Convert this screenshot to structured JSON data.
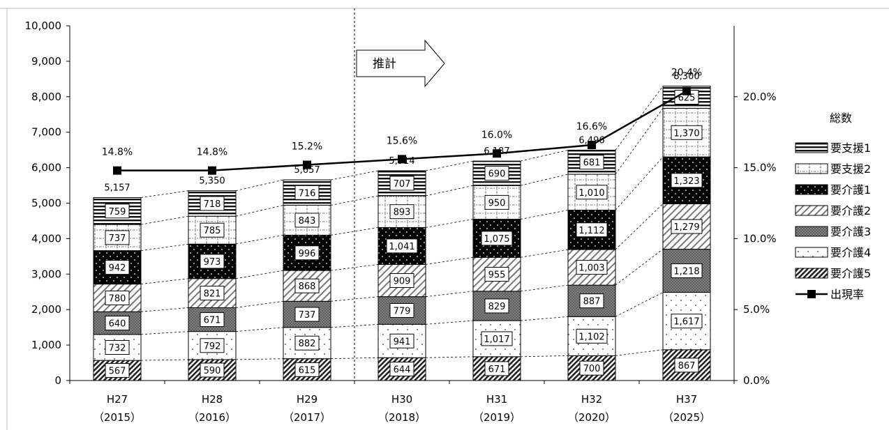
{
  "chart_data": {
    "type": "bar",
    "stacked": true,
    "categories": [
      {
        "label": "H27",
        "sub": "（2015）"
      },
      {
        "label": "H28",
        "sub": "（2016）"
      },
      {
        "label": "H29",
        "sub": "（2017）"
      },
      {
        "label": "H30",
        "sub": "（2018）"
      },
      {
        "label": "H31",
        "sub": "（2019）"
      },
      {
        "label": "H32",
        "sub": "（2020）"
      },
      {
        "label": "H37",
        "sub": "（2025）"
      }
    ],
    "series": [
      {
        "name": "要介護5",
        "pattern": "diag-dense",
        "values": [
          567,
          590,
          615,
          644,
          671,
          700,
          867
        ]
      },
      {
        "name": "要介護4",
        "pattern": "dots-sparse",
        "values": [
          732,
          792,
          882,
          941,
          1017,
          1102,
          1617
        ]
      },
      {
        "name": "要介護3",
        "pattern": "crosshatch-gray",
        "values": [
          640,
          671,
          737,
          779,
          829,
          887,
          1218
        ]
      },
      {
        "name": "要介護2",
        "pattern": "diag-light",
        "values": [
          780,
          821,
          868,
          909,
          955,
          1003,
          1279
        ]
      },
      {
        "name": "要介護1",
        "pattern": "black-dots",
        "values": [
          942,
          973,
          996,
          1041,
          1075,
          1112,
          1323
        ]
      },
      {
        "name": "要支援2",
        "pattern": "dotted-grid",
        "values": [
          737,
          785,
          843,
          893,
          950,
          1010,
          1370
        ]
      },
      {
        "name": "要支援1",
        "pattern": "horizontal-stripes",
        "values": [
          759,
          718,
          716,
          707,
          690,
          681,
          625
        ]
      }
    ],
    "value_labels": {
      "要介護5": [
        "567",
        "590",
        "615",
        "644",
        "671",
        "700",
        "867"
      ],
      "要介護4": [
        "732",
        "792",
        "882",
        "941",
        "1,017",
        "1,102",
        "1,617"
      ],
      "要介護3": [
        "640",
        "671",
        "737",
        "779",
        "829",
        "887",
        "1,218"
      ],
      "要介護2": [
        "780",
        "821",
        "868",
        "909",
        "955",
        "1,003",
        "1,279"
      ],
      "要介護1": [
        "942",
        "973",
        "996",
        "1,041",
        "1,075",
        "1,112",
        "1,323"
      ],
      "要支援2": [
        "737",
        "785",
        "843",
        "893",
        "950",
        "1,010",
        "1,370"
      ],
      "要支援1": [
        "759",
        "718",
        "716",
        "707",
        "690",
        "681",
        "625"
      ]
    },
    "totals": {
      "name": "総数",
      "values": [
        5157,
        5350,
        5657,
        5914,
        6187,
        6496,
        8300
      ],
      "labels": [
        "5,157",
        "5,350",
        "5,657",
        "5,914",
        "6,187",
        "6,496",
        "8,300"
      ]
    },
    "line": {
      "name": "出現率",
      "axis": "right",
      "values": [
        14.8,
        14.8,
        15.2,
        15.6,
        16.0,
        16.6,
        20.4
      ],
      "labels": [
        "14.8%",
        "14.8%",
        "15.2%",
        "15.6%",
        "16.0%",
        "16.6%",
        "20.4%"
      ]
    },
    "y_left": {
      "min": 0,
      "max": 10000,
      "step": 1000,
      "tick_labels": [
        "0",
        "1,000",
        "2,000",
        "3,000",
        "4,000",
        "5,000",
        "6,000",
        "7,000",
        "8,000",
        "9,000",
        "10,000"
      ]
    },
    "y_right": {
      "min": 0,
      "max": 25,
      "step": 5,
      "tick_labels": [
        "0.0%",
        "5.0%",
        "10.0%",
        "15.0%",
        "20.0%"
      ]
    },
    "annotation": {
      "text": "推計",
      "shape": "right-arrow",
      "divider_before_category": 3
    },
    "legend": {
      "title": "総数",
      "position": "right",
      "items": [
        "要支援1",
        "要支援2",
        "要介護1",
        "要介護2",
        "要介護3",
        "要介護4",
        "要介護5",
        "出現率"
      ]
    },
    "grid": false,
    "connector_lines": "dashed"
  }
}
